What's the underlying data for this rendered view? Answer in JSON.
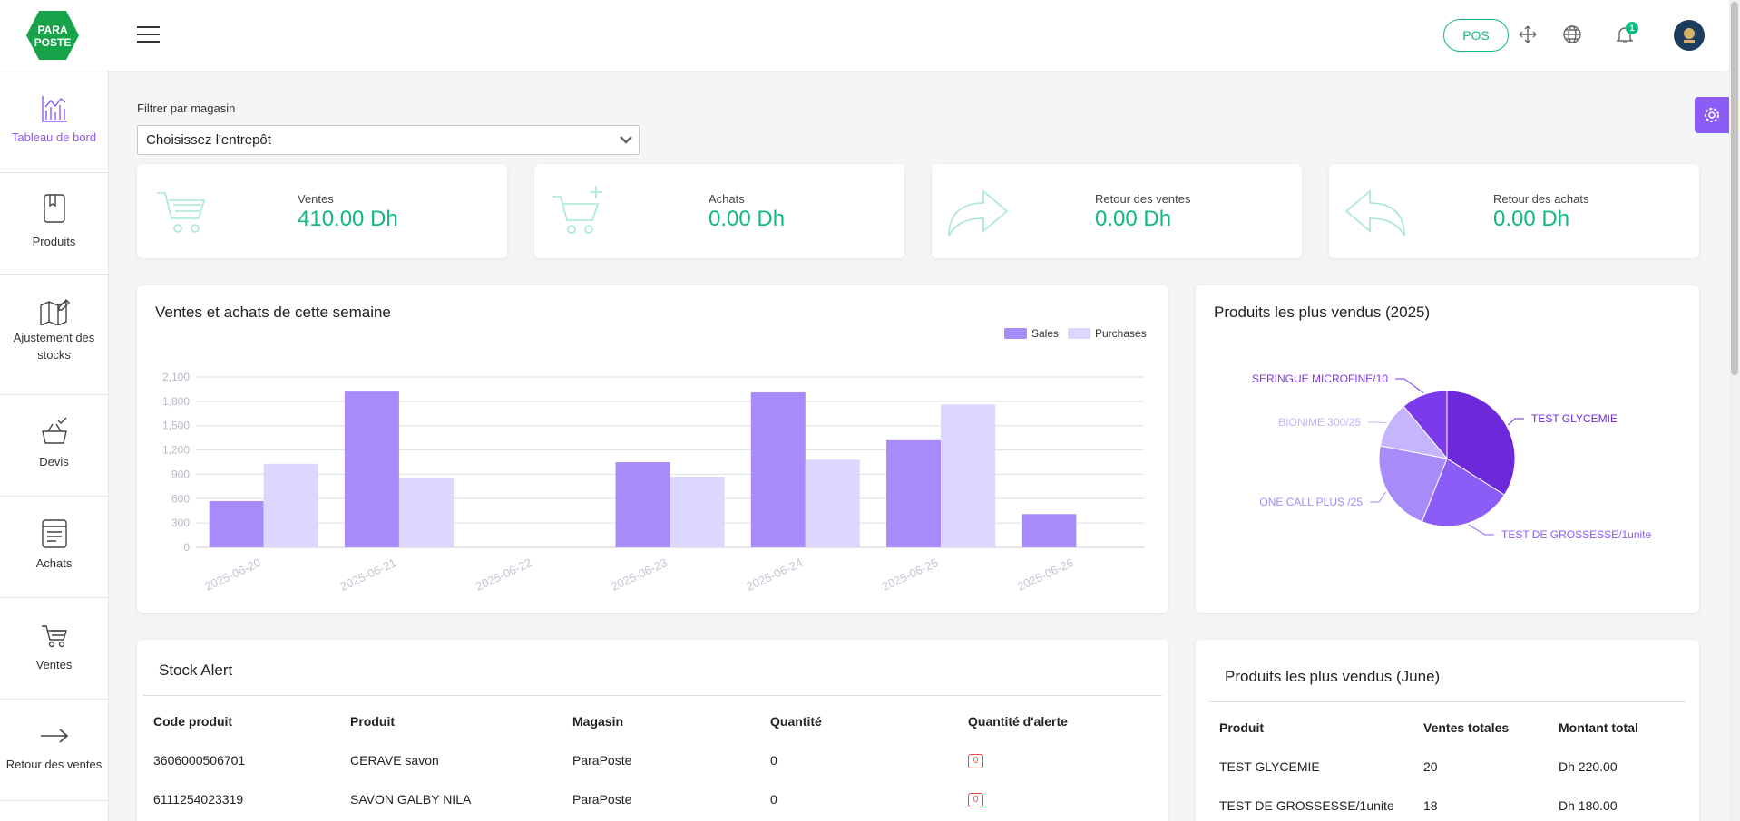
{
  "header": {
    "brand_line1": "PARA",
    "brand_line2": "POSTE",
    "pos_label": "POS",
    "notification_count": "1",
    "brand_color": "#16a34a",
    "accent_color": "#8b5cf6",
    "value_color": "#10b981"
  },
  "sidebar": {
    "items": [
      {
        "label": "Tableau de bord",
        "icon": "chart-icon",
        "active": true
      },
      {
        "label": "Produits",
        "icon": "book-icon"
      },
      {
        "label": "Ajustement des stocks",
        "icon": "map-edit-icon"
      },
      {
        "label": "Devis",
        "icon": "basket-check-icon"
      },
      {
        "label": "Achats",
        "icon": "receipt-icon"
      },
      {
        "label": "Ventes",
        "icon": "cart-icon"
      },
      {
        "label": "Retour des ventes",
        "icon": "arrow-right-icon"
      }
    ]
  },
  "filter": {
    "label": "Filtrer par magasin",
    "value": "Choisissez l'entrepôt"
  },
  "stats": [
    {
      "label": "Ventes",
      "value": "410.00 Dh",
      "icon": "cart-icon"
    },
    {
      "label": "Achats",
      "value": "0.00 Dh",
      "icon": "cart-plus-icon"
    },
    {
      "label": "Retour des ventes",
      "value": "0.00 Dh",
      "icon": "forward-arrow-icon"
    },
    {
      "label": "Retour des achats",
      "value": "0.00 Dh",
      "icon": "reply-arrow-icon"
    }
  ],
  "weekly_chart": {
    "title": "Ventes et achats de cette semaine"
  },
  "pie_chart": {
    "title": "Produits les plus vendus (2025)"
  },
  "chart_data": [
    {
      "type": "bar",
      "title": "Ventes et achats de cette semaine",
      "categories": [
        "2025-06-20",
        "2025-06-21",
        "2025-06-22",
        "2025-06-23",
        "2025-06-24",
        "2025-06-25",
        "2025-06-26"
      ],
      "series": [
        {
          "name": "Sales",
          "values": [
            570,
            1920,
            0,
            1050,
            1910,
            1320,
            410
          ],
          "color": "#a78bfa"
        },
        {
          "name": "Purchases",
          "values": [
            1030,
            850,
            0,
            870,
            1080,
            1760,
            0
          ],
          "color": "#ddd6fe"
        }
      ],
      "y_ticks": [
        "0",
        "300",
        "600",
        "900",
        "1,200",
        "1,500",
        "1,800",
        "2,100"
      ],
      "ylim": [
        0,
        2100
      ],
      "legend": "top-right",
      "grid": true
    },
    {
      "type": "pie",
      "title": "Produits les plus vendus (2025)",
      "labels": [
        "TEST GLYCEMIE",
        "TEST DE GROSSESSE/1unite",
        "ONE CALL PLUS /25",
        "BIONIME 300/25",
        "SERINGUE MICROFINE/10"
      ],
      "values": [
        34,
        22,
        22,
        11,
        11
      ],
      "colors": [
        "#6d28d9",
        "#8b5cf6",
        "#a78bfa",
        "#c4b5fd",
        "#7c3aed"
      ]
    }
  ],
  "stock_alert": {
    "title": "Stock Alert",
    "columns": [
      "Code produit",
      "Produit",
      "Magasin",
      "Quantité",
      "Quantité d'alerte"
    ],
    "rows": [
      [
        "3606000506701",
        "CERAVE savon",
        "ParaPoste",
        "0",
        "0"
      ],
      [
        "6111254023319",
        "SAVON GALBY NILA",
        "ParaPoste",
        "0",
        "0"
      ]
    ]
  },
  "top_month": {
    "title": "Produits les plus vendus (June)",
    "columns": [
      "Produit",
      "Ventes totales",
      "Montant total"
    ],
    "rows": [
      [
        "TEST GLYCEMIE",
        "20",
        "Dh 220.00"
      ],
      [
        "TEST DE GROSSESSE/1unite",
        "18",
        "Dh 180.00"
      ]
    ]
  }
}
